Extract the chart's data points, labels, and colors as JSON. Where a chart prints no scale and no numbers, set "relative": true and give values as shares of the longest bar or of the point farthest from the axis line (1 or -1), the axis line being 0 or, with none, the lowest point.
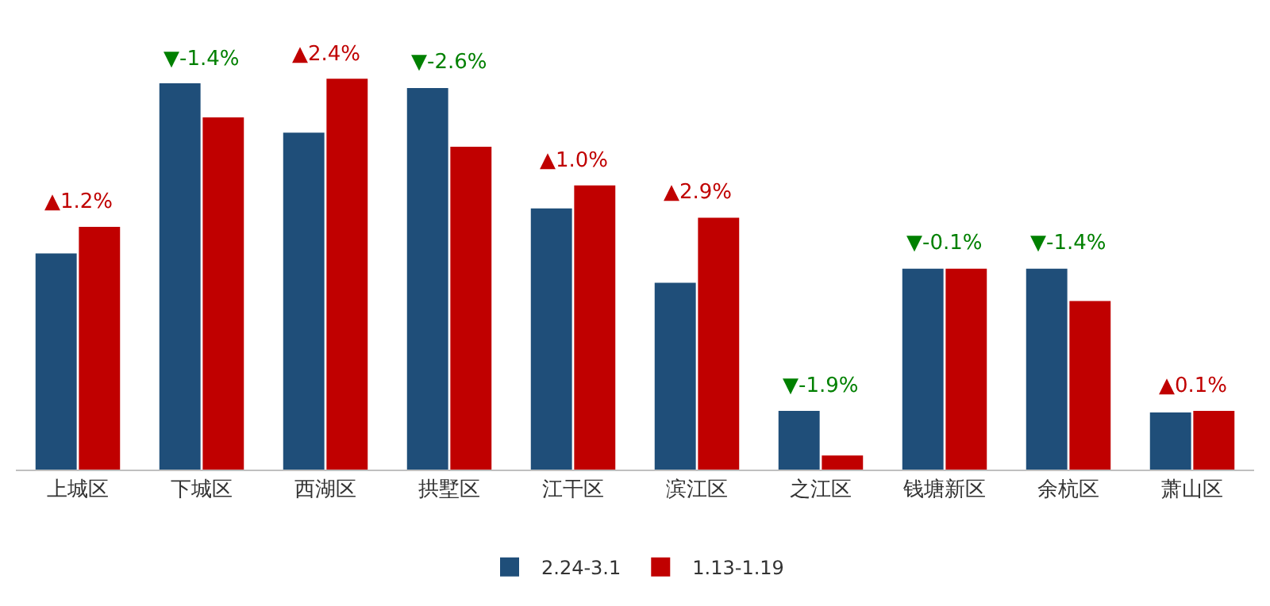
{
  "chart_data": {
    "type": "bar",
    "relative": true,
    "legend": "bottom",
    "categories": [
      "上城区",
      "下城区",
      "西湖区",
      "拱墅区",
      "江干区",
      "滨江区",
      "之江区",
      "钱塘新区",
      "余杭区",
      "萧山区"
    ],
    "series": [
      {
        "name": "2.24-3.1",
        "color": "#1f4e79",
        "values": [
          0.553,
          0.988,
          0.862,
          0.976,
          0.668,
          0.478,
          0.15,
          0.514,
          0.514,
          0.146
        ]
      },
      {
        "name": "1.13-1.19",
        "color": "#c00000",
        "values": [
          0.621,
          0.901,
          1.0,
          0.826,
          0.727,
          0.644,
          0.036,
          0.514,
          0.431,
          0.15
        ]
      }
    ],
    "annotations": [
      {
        "text": "▲1.2%",
        "x": "上城区",
        "y": 0.621
      },
      {
        "text": "▼-1.4%",
        "x": "下城区",
        "y": 0.988
      },
      {
        "text": "▲2.4%",
        "x": "西湖区",
        "y": 1.0
      },
      {
        "text": "▼-2.6%",
        "x": "拱墅区",
        "y": 0.976
      },
      {
        "text": "▲1.0%",
        "x": "江干区",
        "y": 0.727
      },
      {
        "text": "▲2.9%",
        "x": "滨江区",
        "y": 0.644
      },
      {
        "text": "▼-1.9%",
        "x": "之江区",
        "y": 0.15
      },
      {
        "text": "▼-0.1%",
        "x": "钱塘新区",
        "y": 0.514
      },
      {
        "text": "▼-1.4%",
        "x": "余杭区",
        "y": 0.514
      },
      {
        "text": "▲0.1%",
        "x": "萧山区",
        "y": 0.15
      }
    ]
  }
}
